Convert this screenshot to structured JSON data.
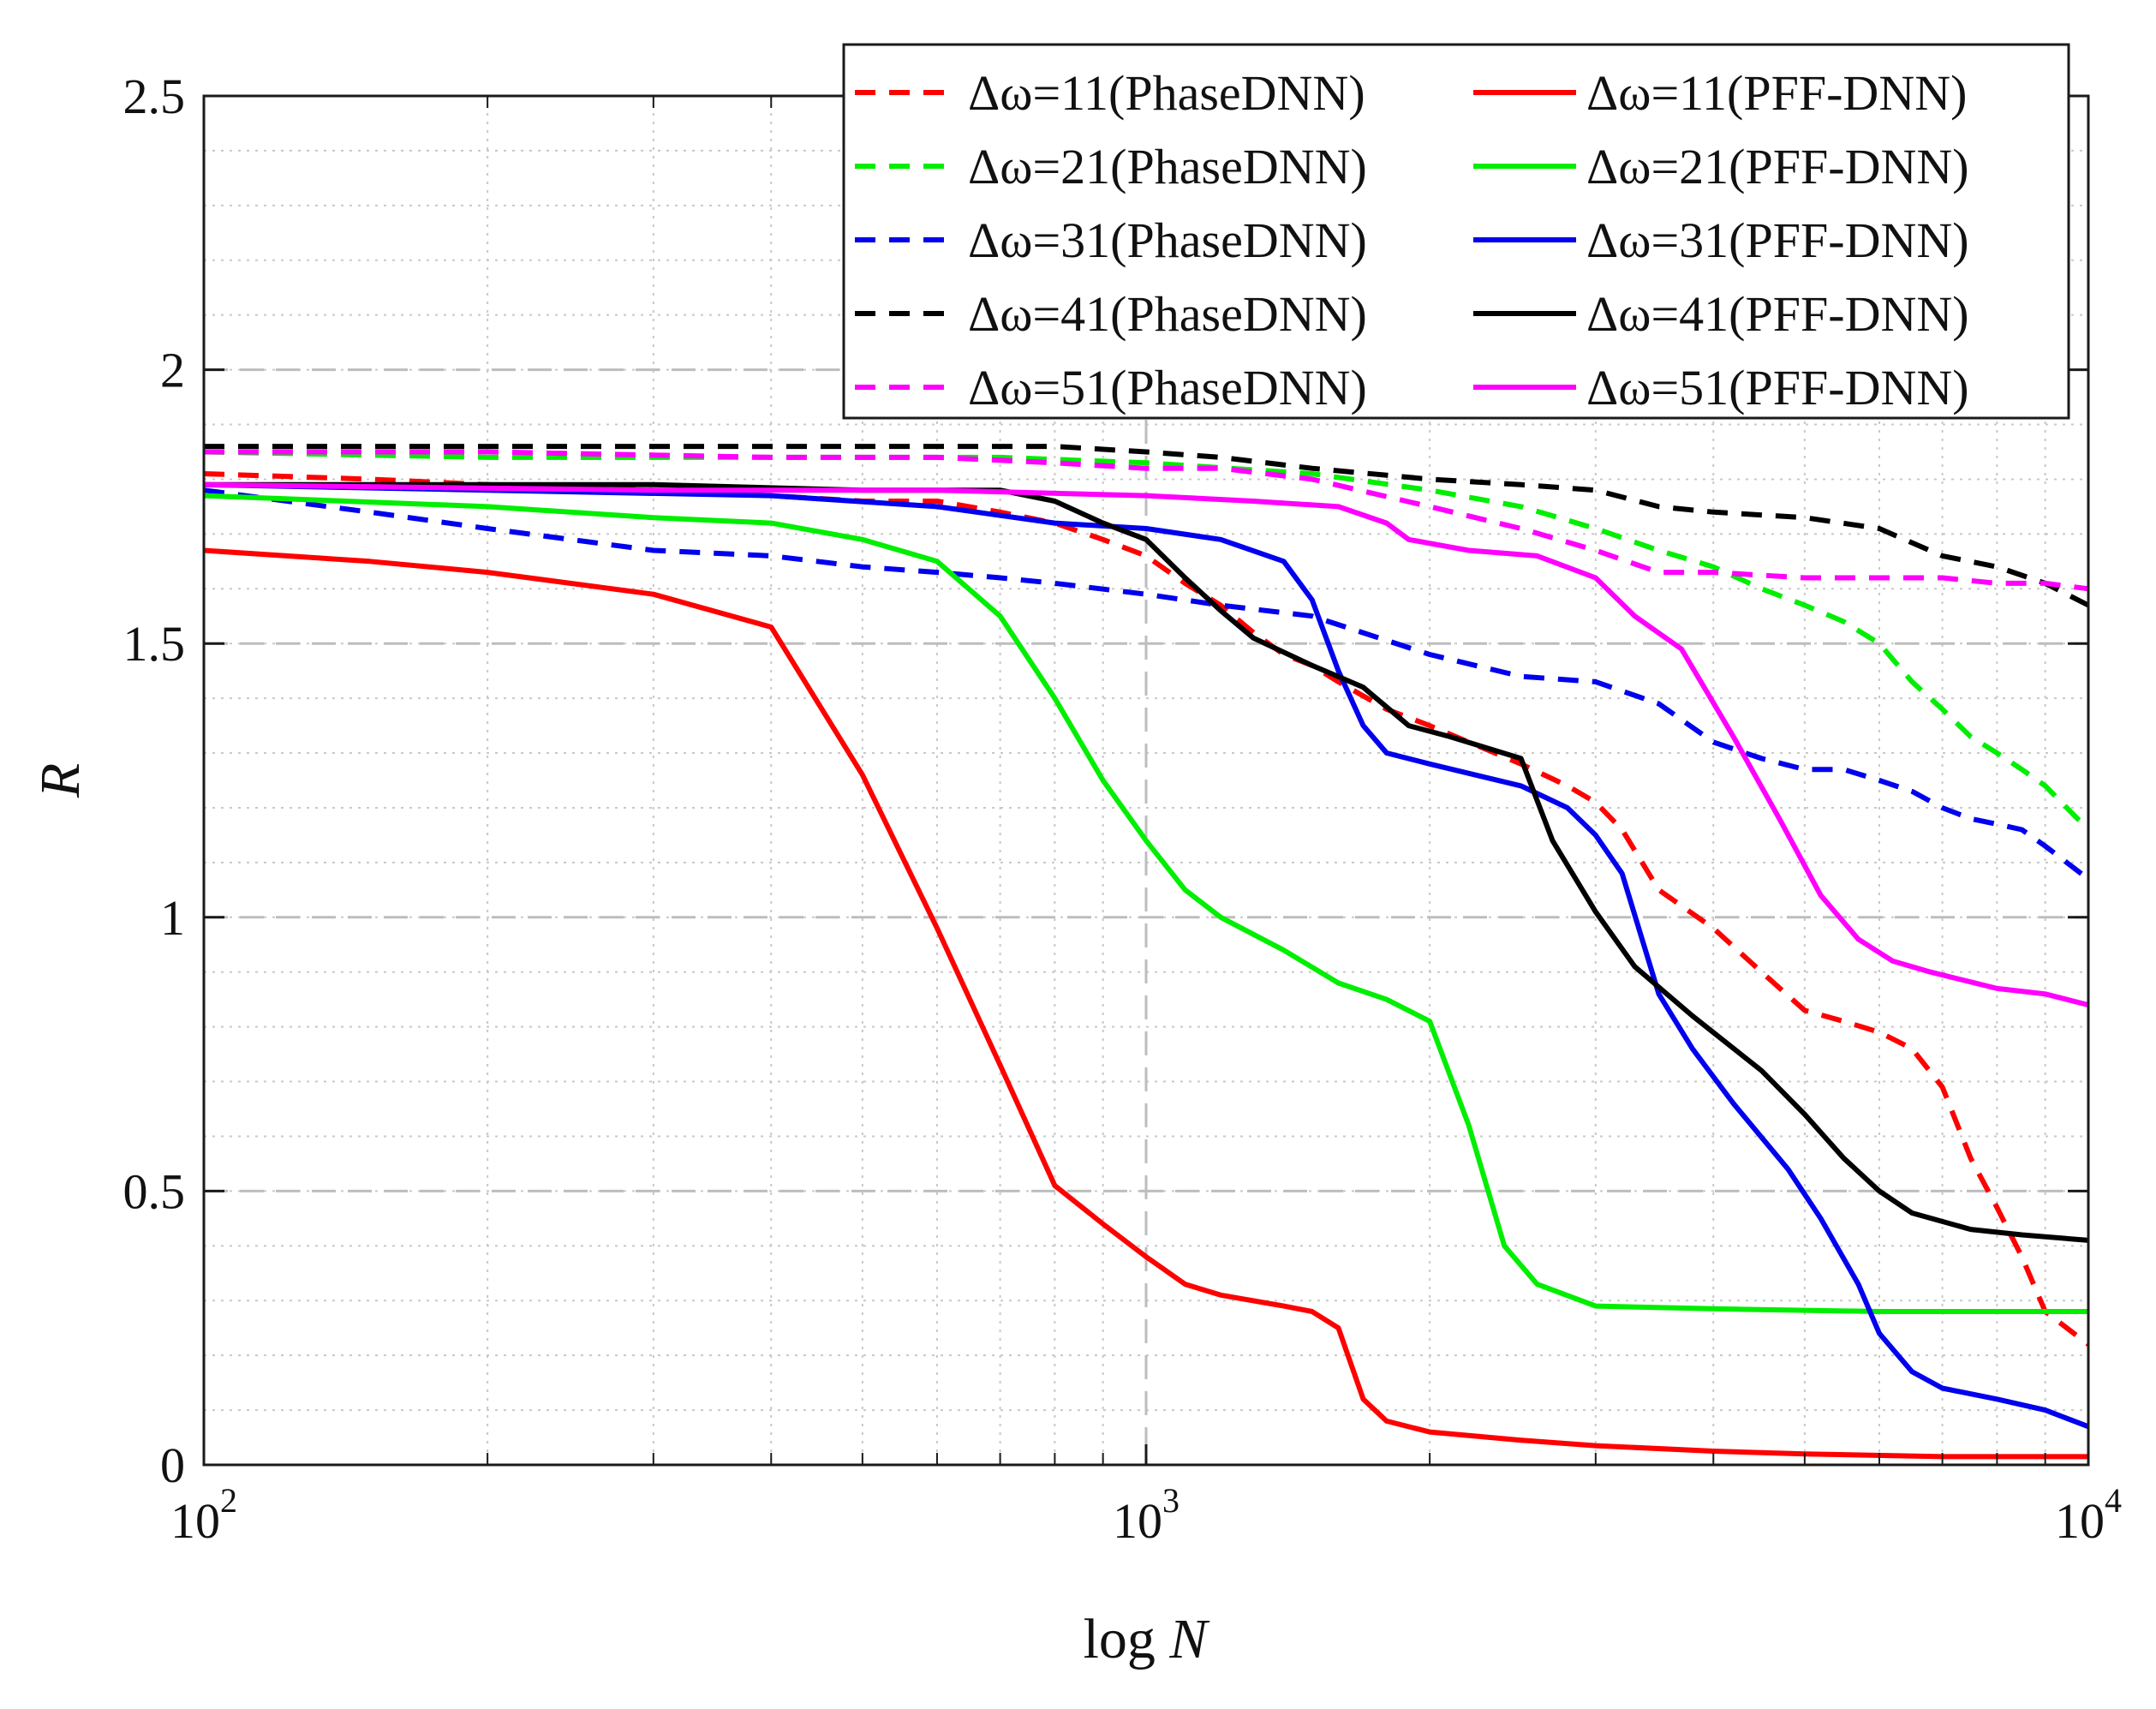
{
  "chart_data": {
    "type": "line",
    "title": "",
    "xlabel_prefix": "log",
    "xlabel_var": "N",
    "ylabel": "R",
    "x_scale": "log",
    "xlim": [
      100,
      10000
    ],
    "ylim": [
      0,
      2.5
    ],
    "x_ticks": [
      {
        "value": 100,
        "base": "10",
        "exp": "2"
      },
      {
        "value": 1000,
        "base": "10",
        "exp": "3"
      },
      {
        "value": 10000,
        "base": "10",
        "exp": "4"
      }
    ],
    "y_ticks": [
      {
        "value": 0,
        "label": "0"
      },
      {
        "value": 0.5,
        "label": "0.5"
      },
      {
        "value": 1,
        "label": "1"
      },
      {
        "value": 1.5,
        "label": "1.5"
      },
      {
        "value": 2,
        "label": "2"
      },
      {
        "value": 2.5,
        "label": "2.5"
      }
    ],
    "grid": true,
    "legend_position": "top-right",
    "series": [
      {
        "name": "Δω=11(PhaseDNN)",
        "color": "#ff0000",
        "style": "dashed",
        "points": [
          [
            100,
            1.81
          ],
          [
            150,
            1.8
          ],
          [
            200,
            1.79
          ],
          [
            300,
            1.78
          ],
          [
            400,
            1.77
          ],
          [
            500,
            1.76
          ],
          [
            600,
            1.76
          ],
          [
            700,
            1.74
          ],
          [
            800,
            1.72
          ],
          [
            900,
            1.69
          ],
          [
            1000,
            1.66
          ],
          [
            1100,
            1.61
          ],
          [
            1200,
            1.57
          ],
          [
            1300,
            1.52
          ],
          [
            1400,
            1.48
          ],
          [
            1500,
            1.46
          ],
          [
            1600,
            1.43
          ],
          [
            1800,
            1.38
          ],
          [
            2000,
            1.35
          ],
          [
            2200,
            1.32
          ],
          [
            2500,
            1.28
          ],
          [
            2800,
            1.24
          ],
          [
            3000,
            1.21
          ],
          [
            3200,
            1.16
          ],
          [
            3500,
            1.05
          ],
          [
            4000,
            0.98
          ],
          [
            4500,
            0.9
          ],
          [
            5000,
            0.83
          ],
          [
            5500,
            0.81
          ],
          [
            6000,
            0.79
          ],
          [
            6500,
            0.76
          ],
          [
            7000,
            0.69
          ],
          [
            7500,
            0.56
          ],
          [
            8000,
            0.47
          ],
          [
            8500,
            0.38
          ],
          [
            9000,
            0.28
          ],
          [
            10000,
            0.22
          ]
        ]
      },
      {
        "name": "Δω=21(PhaseDNN)",
        "color": "#00ee00",
        "style": "dashed",
        "points": [
          [
            100,
            1.85
          ],
          [
            200,
            1.84
          ],
          [
            300,
            1.84
          ],
          [
            500,
            1.84
          ],
          [
            700,
            1.84
          ],
          [
            1000,
            1.83
          ],
          [
            1500,
            1.81
          ],
          [
            2000,
            1.78
          ],
          [
            2500,
            1.75
          ],
          [
            3000,
            1.71
          ],
          [
            3500,
            1.67
          ],
          [
            4000,
            1.64
          ],
          [
            4500,
            1.6
          ],
          [
            5000,
            1.57
          ],
          [
            5500,
            1.54
          ],
          [
            6000,
            1.5
          ],
          [
            6500,
            1.43
          ],
          [
            7000,
            1.38
          ],
          [
            7500,
            1.33
          ],
          [
            8000,
            1.3
          ],
          [
            8500,
            1.27
          ],
          [
            9000,
            1.24
          ],
          [
            10000,
            1.16
          ]
        ]
      },
      {
        "name": "Δω=31(PhaseDNN)",
        "color": "#0000ee",
        "style": "dashed",
        "points": [
          [
            100,
            1.78
          ],
          [
            150,
            1.74
          ],
          [
            200,
            1.71
          ],
          [
            300,
            1.67
          ],
          [
            400,
            1.66
          ],
          [
            500,
            1.64
          ],
          [
            600,
            1.63
          ],
          [
            700,
            1.62
          ],
          [
            800,
            1.61
          ],
          [
            1000,
            1.59
          ],
          [
            1200,
            1.57
          ],
          [
            1500,
            1.55
          ],
          [
            2000,
            1.48
          ],
          [
            2500,
            1.44
          ],
          [
            3000,
            1.43
          ],
          [
            3500,
            1.39
          ],
          [
            4000,
            1.32
          ],
          [
            4500,
            1.29
          ],
          [
            5000,
            1.27
          ],
          [
            5500,
            1.27
          ],
          [
            6000,
            1.25
          ],
          [
            6500,
            1.23
          ],
          [
            7000,
            1.2
          ],
          [
            7500,
            1.18
          ],
          [
            8000,
            1.17
          ],
          [
            8500,
            1.16
          ],
          [
            9000,
            1.13
          ],
          [
            10000,
            1.07
          ]
        ]
      },
      {
        "name": "Δω=41(PhaseDNN)",
        "color": "#000000",
        "style": "dashed",
        "points": [
          [
            100,
            1.86
          ],
          [
            200,
            1.86
          ],
          [
            400,
            1.86
          ],
          [
            600,
            1.86
          ],
          [
            800,
            1.86
          ],
          [
            1000,
            1.85
          ],
          [
            1200,
            1.84
          ],
          [
            1500,
            1.82
          ],
          [
            2000,
            1.8
          ],
          [
            2500,
            1.79
          ],
          [
            3000,
            1.78
          ],
          [
            3500,
            1.75
          ],
          [
            4000,
            1.74
          ],
          [
            5000,
            1.73
          ],
          [
            6000,
            1.71
          ],
          [
            7000,
            1.66
          ],
          [
            8000,
            1.64
          ],
          [
            9000,
            1.61
          ],
          [
            10000,
            1.57
          ]
        ]
      },
      {
        "name": "Δω=51(PhaseDNN)",
        "color": "#ff00ff",
        "style": "dashed",
        "points": [
          [
            100,
            1.85
          ],
          [
            200,
            1.85
          ],
          [
            400,
            1.84
          ],
          [
            600,
            1.84
          ],
          [
            800,
            1.83
          ],
          [
            1000,
            1.82
          ],
          [
            1200,
            1.82
          ],
          [
            1500,
            1.8
          ],
          [
            2000,
            1.75
          ],
          [
            2500,
            1.71
          ],
          [
            3000,
            1.67
          ],
          [
            3500,
            1.63
          ],
          [
            4000,
            1.63
          ],
          [
            5000,
            1.62
          ],
          [
            6000,
            1.62
          ],
          [
            7000,
            1.62
          ],
          [
            8000,
            1.61
          ],
          [
            9000,
            1.61
          ],
          [
            10000,
            1.6
          ]
        ]
      },
      {
        "name": "Δω=11(PFF-DNN)",
        "color": "#ff0000",
        "style": "solid",
        "points": [
          [
            100,
            1.67
          ],
          [
            150,
            1.65
          ],
          [
            200,
            1.63
          ],
          [
            300,
            1.59
          ],
          [
            400,
            1.53
          ],
          [
            500,
            1.26
          ],
          [
            600,
            0.98
          ],
          [
            700,
            0.73
          ],
          [
            800,
            0.51
          ],
          [
            900,
            0.44
          ],
          [
            1000,
            0.38
          ],
          [
            1100,
            0.33
          ],
          [
            1200,
            0.31
          ],
          [
            1400,
            0.29
          ],
          [
            1500,
            0.28
          ],
          [
            1600,
            0.25
          ],
          [
            1700,
            0.12
          ],
          [
            1800,
            0.08
          ],
          [
            2000,
            0.06
          ],
          [
            2500,
            0.045
          ],
          [
            3000,
            0.035
          ],
          [
            4000,
            0.025
          ],
          [
            5000,
            0.02
          ],
          [
            7000,
            0.015
          ],
          [
            10000,
            0.015
          ]
        ]
      },
      {
        "name": "Δω=21(PFF-DNN)",
        "color": "#00ee00",
        "style": "solid",
        "points": [
          [
            100,
            1.77
          ],
          [
            200,
            1.75
          ],
          [
            300,
            1.73
          ],
          [
            400,
            1.72
          ],
          [
            500,
            1.69
          ],
          [
            600,
            1.65
          ],
          [
            700,
            1.55
          ],
          [
            800,
            1.4
          ],
          [
            900,
            1.25
          ],
          [
            1000,
            1.14
          ],
          [
            1100,
            1.05
          ],
          [
            1200,
            1.0
          ],
          [
            1400,
            0.94
          ],
          [
            1600,
            0.88
          ],
          [
            1800,
            0.85
          ],
          [
            2000,
            0.81
          ],
          [
            2200,
            0.62
          ],
          [
            2400,
            0.4
          ],
          [
            2600,
            0.33
          ],
          [
            3000,
            0.29
          ],
          [
            4000,
            0.285
          ],
          [
            6000,
            0.28
          ],
          [
            10000,
            0.28
          ]
        ]
      },
      {
        "name": "Δω=31(PFF-DNN)",
        "color": "#0000ee",
        "style": "solid",
        "points": [
          [
            100,
            1.79
          ],
          [
            200,
            1.78
          ],
          [
            400,
            1.77
          ],
          [
            600,
            1.75
          ],
          [
            800,
            1.72
          ],
          [
            1000,
            1.71
          ],
          [
            1200,
            1.69
          ],
          [
            1400,
            1.65
          ],
          [
            1500,
            1.58
          ],
          [
            1600,
            1.45
          ],
          [
            1700,
            1.35
          ],
          [
            1800,
            1.3
          ],
          [
            2000,
            1.28
          ],
          [
            2500,
            1.24
          ],
          [
            2800,
            1.2
          ],
          [
            3000,
            1.15
          ],
          [
            3200,
            1.08
          ],
          [
            3500,
            0.86
          ],
          [
            3800,
            0.76
          ],
          [
            4200,
            0.66
          ],
          [
            4800,
            0.54
          ],
          [
            5200,
            0.45
          ],
          [
            5700,
            0.33
          ],
          [
            6000,
            0.24
          ],
          [
            6500,
            0.17
          ],
          [
            7000,
            0.14
          ],
          [
            8000,
            0.12
          ],
          [
            9000,
            0.1
          ],
          [
            10000,
            0.07
          ]
        ]
      },
      {
        "name": "Δω=41(PFF-DNN)",
        "color": "#000000",
        "style": "solid",
        "points": [
          [
            100,
            1.79
          ],
          [
            300,
            1.79
          ],
          [
            500,
            1.78
          ],
          [
            700,
            1.78
          ],
          [
            800,
            1.76
          ],
          [
            900,
            1.72
          ],
          [
            1000,
            1.69
          ],
          [
            1100,
            1.62
          ],
          [
            1200,
            1.56
          ],
          [
            1300,
            1.51
          ],
          [
            1500,
            1.46
          ],
          [
            1700,
            1.42
          ],
          [
            1900,
            1.35
          ],
          [
            2100,
            1.33
          ],
          [
            2500,
            1.29
          ],
          [
            2700,
            1.14
          ],
          [
            3000,
            1.01
          ],
          [
            3300,
            0.91
          ],
          [
            3800,
            0.82
          ],
          [
            4500,
            0.72
          ],
          [
            5000,
            0.64
          ],
          [
            5500,
            0.56
          ],
          [
            6000,
            0.5
          ],
          [
            6500,
            0.46
          ],
          [
            7500,
            0.43
          ],
          [
            8500,
            0.42
          ],
          [
            10000,
            0.41
          ]
        ]
      },
      {
        "name": "Δω=51(PFF-DNN)",
        "color": "#ff00ff",
        "style": "solid",
        "points": [
          [
            100,
            1.79
          ],
          [
            300,
            1.78
          ],
          [
            600,
            1.78
          ],
          [
            1000,
            1.77
          ],
          [
            1300,
            1.76
          ],
          [
            1600,
            1.75
          ],
          [
            1800,
            1.72
          ],
          [
            1900,
            1.69
          ],
          [
            2200,
            1.67
          ],
          [
            2600,
            1.66
          ],
          [
            3000,
            1.62
          ],
          [
            3300,
            1.55
          ],
          [
            3700,
            1.49
          ],
          [
            4200,
            1.33
          ],
          [
            4700,
            1.18
          ],
          [
            5200,
            1.04
          ],
          [
            5700,
            0.96
          ],
          [
            6200,
            0.92
          ],
          [
            6800,
            0.9
          ],
          [
            8000,
            0.87
          ],
          [
            9000,
            0.86
          ],
          [
            10000,
            0.84
          ]
        ]
      }
    ]
  }
}
